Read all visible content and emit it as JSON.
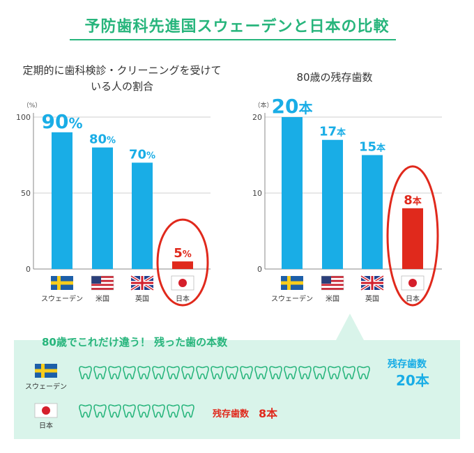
{
  "page": {
    "title": "予防歯科先進国スウェーデンと日本の比較",
    "accent_color": "#27b57c"
  },
  "chart_data": [
    {
      "type": "bar",
      "title": "定期的に歯科検診・クリーニングを受けている人の割合",
      "unit_label": "（%）",
      "categories": [
        "スウェーデン",
        "米国",
        "英国",
        "日本"
      ],
      "flags": [
        "flag-sweden-icon",
        "flag-usa-icon",
        "flag-uk-icon",
        "flag-japan-icon"
      ],
      "values": [
        90,
        80,
        70,
        5
      ],
      "data_labels": [
        {
          "num": "90",
          "unit": "%"
        },
        {
          "num": "80",
          "unit": "%"
        },
        {
          "num": "70",
          "unit": "%"
        },
        {
          "num": "5",
          "unit": "%"
        }
      ],
      "yticks": [
        "0",
        "50",
        "100"
      ],
      "ylim": [
        0,
        100
      ],
      "highlight_index": 3,
      "bar_color": "#19ade6",
      "highlight_color": "#e0291c",
      "grid": true
    },
    {
      "type": "bar",
      "title": "80歳の残存歯数",
      "unit_label": "（本）",
      "categories": [
        "スウェーデン",
        "米国",
        "英国",
        "日本"
      ],
      "flags": [
        "flag-sweden-icon",
        "flag-usa-icon",
        "flag-uk-icon",
        "flag-japan-icon"
      ],
      "values": [
        20,
        17,
        15,
        8
      ],
      "data_labels": [
        {
          "num": "20",
          "unit": "本"
        },
        {
          "num": "17",
          "unit": "本"
        },
        {
          "num": "15",
          "unit": "本"
        },
        {
          "num": "8",
          "unit": "本"
        }
      ],
      "yticks": [
        "0",
        "10",
        "20"
      ],
      "ylim": [
        0,
        20
      ],
      "highlight_index": 3,
      "bar_color": "#19ade6",
      "highlight_color": "#e0291c",
      "grid": true
    }
  ],
  "comparison": {
    "title": "80歳でこれだけ違う！ 残った歯の本数",
    "rows": [
      {
        "country": "スウェーデン",
        "flag": "flag-sweden-icon",
        "teeth": 20,
        "label_line1": "残存歯数",
        "label_line2": "20本",
        "label_color": "#19ade6"
      },
      {
        "country": "日本",
        "flag": "flag-japan-icon",
        "teeth": 8,
        "label_line1": "残存歯数",
        "label_line2": "8本",
        "label_color": "#e0291c"
      }
    ]
  }
}
